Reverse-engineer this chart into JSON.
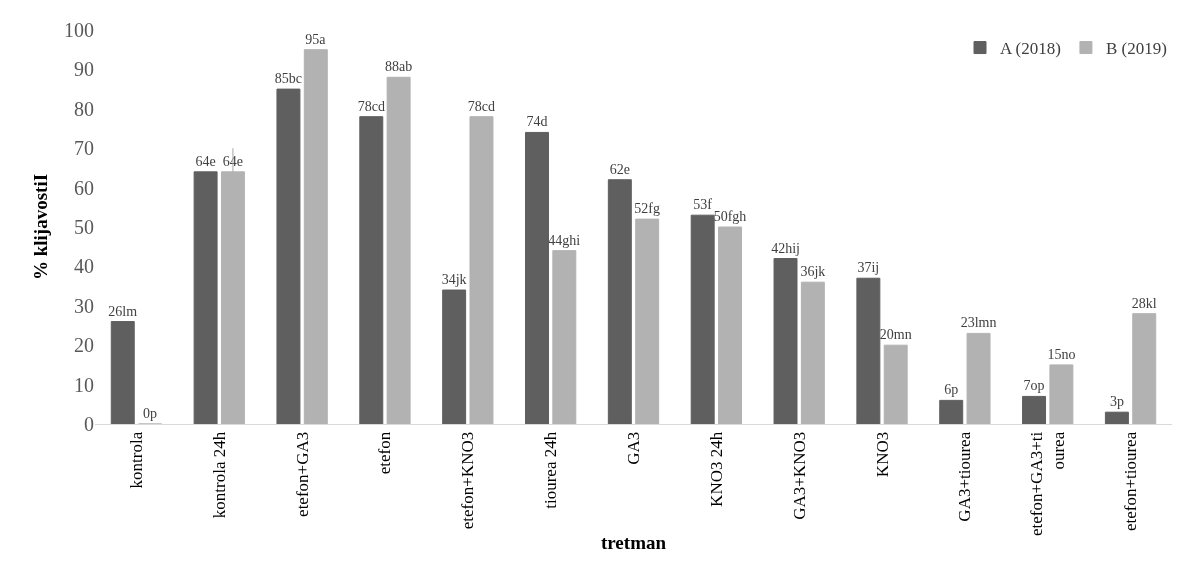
{
  "chart_data": {
    "type": "bar",
    "xlabel": "tretman",
    "ylabel": "% klijavostiI",
    "categories": [
      "kontrola",
      "kontrola 24h",
      "etefon+GA3",
      "etefon",
      "etefon+KNO3",
      "tiourea 24h",
      "GA3",
      "KNO3 24h",
      "GA3+KNO3",
      "KNO3",
      "GA3+tiourea",
      "etefon+GA3+tiourea",
      "etefon+tiourea"
    ],
    "series": [
      {
        "name": "A (2018)",
        "color": "#5f5f5f",
        "values": [
          26,
          64,
          85,
          78,
          34,
          74,
          62,
          53,
          42,
          37,
          6,
          7,
          3
        ],
        "value_labels": [
          "26lm",
          "64e",
          "85bc",
          "78cd",
          "34jk",
          "74d",
          "62e",
          "53f",
          "42hij",
          "37ij",
          "6p",
          "7op",
          "3p"
        ]
      },
      {
        "name": "B (2019)",
        "color": "#b2b2b2",
        "values": [
          0,
          64,
          95,
          88,
          78,
          44,
          52,
          50,
          36,
          20,
          23,
          15,
          28
        ],
        "value_labels": [
          "0p",
          "64e",
          "95a",
          "88ab",
          "78cd",
          "44ghi",
          "52fg",
          "50fgh",
          "36jk",
          "20mn",
          "23lmn",
          "15no",
          "28kl"
        ],
        "errors": [
          null,
          [
            64,
            70
          ],
          null,
          null,
          null,
          null,
          null,
          null,
          null,
          null,
          null,
          null,
          null
        ]
      }
    ],
    "ylim": [
      0,
      100
    ],
    "yticks": [
      0,
      10,
      20,
      30,
      40,
      50,
      60,
      70,
      80,
      90,
      100
    ],
    "legend": "top right"
  }
}
